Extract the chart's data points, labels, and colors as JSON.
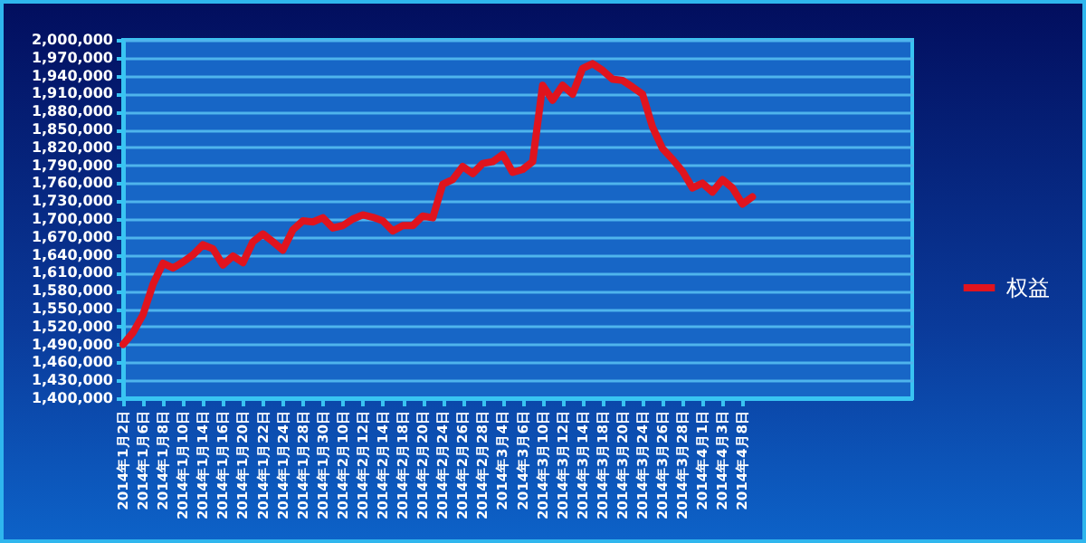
{
  "chart_data": {
    "type": "line",
    "categories": [
      "2014年1月2日",
      null,
      "2014年1月6日",
      null,
      "2014年1月8日",
      null,
      "2014年1月10日",
      null,
      "2014年1月14日",
      null,
      "2014年1月16日",
      null,
      "2014年1月20日",
      null,
      "2014年1月22日",
      null,
      "2014年1月24日",
      null,
      "2014年1月28日",
      null,
      "2014年1月30日",
      null,
      "2014年2月10日",
      null,
      "2014年2月12日",
      null,
      "2014年2月14日",
      null,
      "2014年2月18日",
      null,
      "2014年2月20日",
      null,
      "2014年2月24日",
      null,
      "2014年2月26日",
      null,
      "2014年2月28日",
      null,
      "2014年3月4日",
      null,
      "2014年3月6日",
      null,
      "2014年3月10日",
      null,
      "2014年3月12日",
      null,
      "2014年3月14日",
      null,
      "2014年3月18日",
      null,
      "2014年3月20日",
      null,
      "2014年3月24日",
      null,
      "2014年3月26日",
      null,
      "2014年3月28日",
      null,
      "2014年4月1日",
      null,
      "2014年4月3日",
      null,
      "2014年4月8日",
      null,
      null,
      null,
      null,
      null,
      null,
      null,
      null,
      null,
      null,
      null,
      null,
      null,
      null,
      null,
      null,
      null
    ],
    "series": [
      {
        "name": "权益",
        "color": "#e0141e",
        "values": [
          1490000,
          1510000,
          1540000,
          1591000,
          1626000,
          1618000,
          1628000,
          1640000,
          1657000,
          1650000,
          1623000,
          1638000,
          1627000,
          1662000,
          1675000,
          1662000,
          1648000,
          1682000,
          1697000,
          1695000,
          1702000,
          1685000,
          1689000,
          1700000,
          1707000,
          1703000,
          1697000,
          1680000,
          1689000,
          1689000,
          1705000,
          1702000,
          1758000,
          1766000,
          1788000,
          1776000,
          1793000,
          1796000,
          1808000,
          1778000,
          1783000,
          1796000,
          1924000,
          1899000,
          1924000,
          1909000,
          1952000,
          1960000,
          1949000,
          1934000,
          1932000,
          1921000,
          1909000,
          1854000,
          1818000,
          1800000,
          1780000,
          1752000,
          1760000,
          1745000,
          1766000,
          1752000,
          1725000,
          1737000,
          null,
          null,
          null,
          null,
          null,
          null,
          null,
          null,
          null,
          null,
          null,
          null,
          null,
          null,
          null,
          null
        ]
      }
    ],
    "ylim": [
      1400000,
      2000000
    ],
    "yticks": [
      {
        "value": 1400000,
        "label": "1,400,000"
      },
      {
        "value": 1430000,
        "label": "1,430,000"
      },
      {
        "value": 1460000,
        "label": "1,460,000"
      },
      {
        "value": 1490000,
        "label": "1,490,000"
      },
      {
        "value": 1520000,
        "label": "1,520,000"
      },
      {
        "value": 1550000,
        "label": "1,550,000"
      },
      {
        "value": 1580000,
        "label": "1,580,000"
      },
      {
        "value": 1610000,
        "label": "1,610,000"
      },
      {
        "value": 1640000,
        "label": "1,640,000"
      },
      {
        "value": 1670000,
        "label": "1,670,000"
      },
      {
        "value": 1700000,
        "label": "1,700,000"
      },
      {
        "value": 1730000,
        "label": "1,730,000"
      },
      {
        "value": 1760000,
        "label": "1,760,000"
      },
      {
        "value": 1790000,
        "label": "1,790,000"
      },
      {
        "value": 1820000,
        "label": "1,820,000"
      },
      {
        "value": 1850000,
        "label": "1,850,000"
      },
      {
        "value": 1880000,
        "label": "1,880,000"
      },
      {
        "value": 1910000,
        "label": "1,910,000"
      },
      {
        "value": 1940000,
        "label": "1,940,000"
      },
      {
        "value": 1970000,
        "label": "1,970,000"
      },
      {
        "value": 2000000,
        "label": "2,000,000"
      }
    ],
    "grid": "y",
    "legend": "right",
    "marker": "none",
    "line_style": "solid"
  }
}
